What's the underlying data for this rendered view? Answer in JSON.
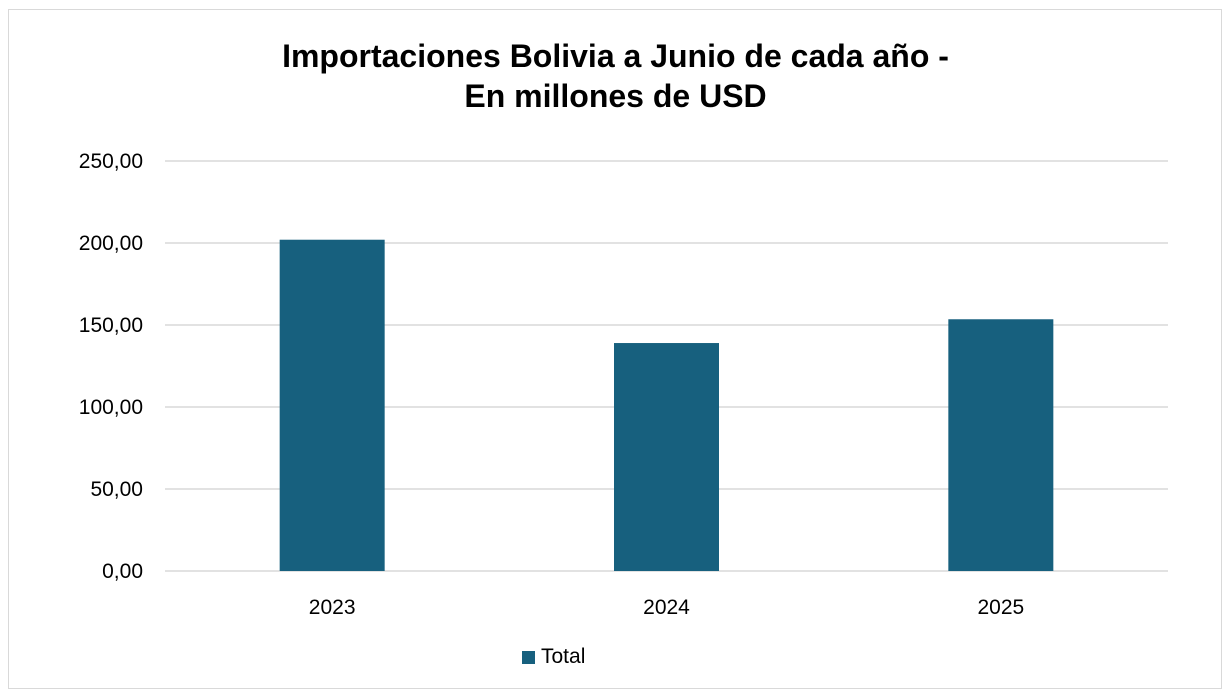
{
  "chart_data": {
    "type": "bar",
    "title": "Importaciones Bolivia a Junio de cada año -",
    "subtitle": "En millones de USD",
    "categories": [
      "2023",
      "2024",
      "2025"
    ],
    "series": [
      {
        "name": "Total",
        "values": [
          202.0,
          139.0,
          153.5
        ]
      }
    ],
    "ylim": [
      0,
      250
    ],
    "yticks": [
      0,
      50,
      100,
      150,
      200,
      250
    ],
    "ytick_labels": [
      "0,00",
      "50,00",
      "100,00",
      "150,00",
      "200,00",
      "250,00"
    ],
    "grid": true,
    "legend_position": "bottom",
    "bar_color": "#17607e",
    "grid_color": "#d9d9d9"
  }
}
